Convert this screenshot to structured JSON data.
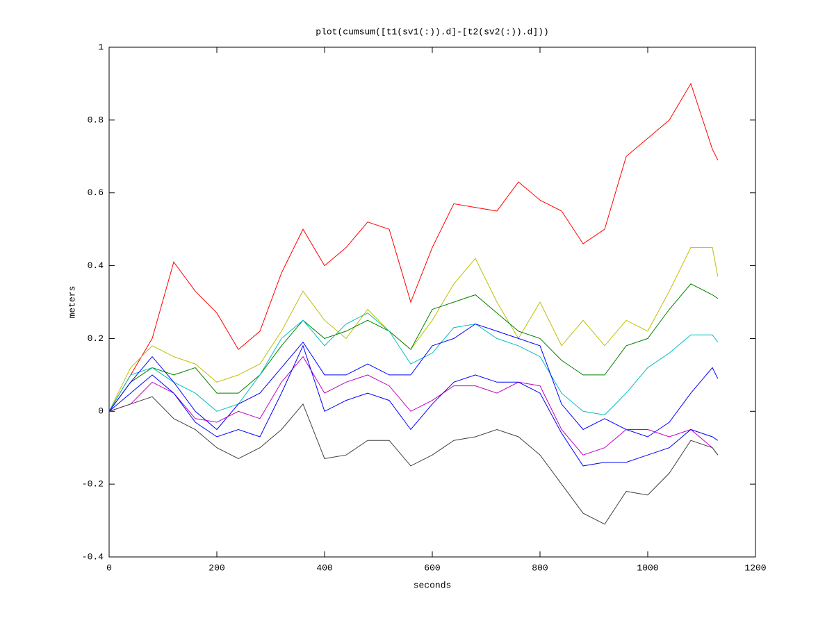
{
  "chart_data": {
    "type": "line",
    "title": "plot(cumsum([t1(sv1(:)).d]-[t2(sv2(:)).d]))",
    "xlabel": "seconds",
    "ylabel": "meters",
    "x": [
      0,
      40,
      80,
      120,
      160,
      200,
      240,
      280,
      320,
      360,
      400,
      440,
      480,
      520,
      560,
      600,
      640,
      680,
      720,
      760,
      800,
      840,
      880,
      920,
      960,
      1000,
      1040,
      1080,
      1120,
      1130
    ],
    "series": [
      {
        "color": "#ff0000",
        "values": [
          0,
          0.1,
          0.2,
          0.41,
          0.33,
          0.27,
          0.17,
          0.22,
          0.38,
          0.5,
          0.4,
          0.45,
          0.52,
          0.5,
          0.3,
          0.45,
          0.57,
          0.56,
          0.55,
          0.63,
          0.58,
          0.55,
          0.46,
          0.5,
          0.7,
          0.75,
          0.8,
          0.9,
          0.72,
          0.69
        ]
      },
      {
        "color": "#bfbf00",
        "values": [
          0,
          0.12,
          0.18,
          0.15,
          0.13,
          0.08,
          0.1,
          0.13,
          0.22,
          0.33,
          0.25,
          0.2,
          0.28,
          0.22,
          0.17,
          0.25,
          0.35,
          0.42,
          0.3,
          0.2,
          0.3,
          0.18,
          0.25,
          0.18,
          0.25,
          0.22,
          0.33,
          0.45,
          0.45,
          0.37
        ]
      },
      {
        "color": "#008000",
        "values": [
          0,
          0.08,
          0.12,
          0.1,
          0.12,
          0.05,
          0.05,
          0.1,
          0.18,
          0.25,
          0.2,
          0.22,
          0.25,
          0.22,
          0.17,
          0.28,
          0.3,
          0.32,
          0.27,
          0.22,
          0.2,
          0.14,
          0.1,
          0.1,
          0.18,
          0.2,
          0.28,
          0.35,
          0.32,
          0.31
        ]
      },
      {
        "color": "#00bfbf",
        "values": [
          0,
          0.1,
          0.12,
          0.08,
          0.05,
          0,
          0.02,
          0.1,
          0.2,
          0.25,
          0.18,
          0.24,
          0.27,
          0.22,
          0.13,
          0.16,
          0.23,
          0.24,
          0.2,
          0.18,
          0.15,
          0.05,
          0,
          -0.01,
          0.05,
          0.12,
          0.16,
          0.21,
          0.21,
          0.19
        ]
      },
      {
        "color": "#0000ff",
        "values": [
          0,
          0.08,
          0.15,
          0.08,
          0,
          -0.05,
          0.02,
          0.05,
          0.12,
          0.19,
          0.1,
          0.1,
          0.13,
          0.1,
          0.1,
          0.18,
          0.2,
          0.24,
          0.22,
          0.2,
          0.18,
          0.02,
          -0.05,
          -0.02,
          -0.05,
          -0.07,
          -0.03,
          0.05,
          0.12,
          0.09
        ]
      },
      {
        "color": "#bf00bf",
        "values": [
          0,
          0.02,
          0.08,
          0.05,
          -0.02,
          -0.03,
          0,
          -0.02,
          0.08,
          0.15,
          0.05,
          0.08,
          0.1,
          0.07,
          0,
          0.03,
          0.07,
          0.07,
          0.05,
          0.08,
          0.07,
          -0.05,
          -0.12,
          -0.1,
          -0.05,
          -0.05,
          -0.07,
          -0.05,
          -0.1,
          -0.12
        ]
      },
      {
        "color": "#0000ff",
        "values": [
          0,
          0.05,
          0.1,
          0.05,
          -0.03,
          -0.07,
          -0.05,
          -0.07,
          0.05,
          0.18,
          0,
          0.03,
          0.05,
          0.03,
          -0.05,
          0.02,
          0.08,
          0.1,
          0.08,
          0.08,
          0.05,
          -0.06,
          -0.15,
          -0.14,
          -0.14,
          -0.12,
          -0.1,
          -0.05,
          -0.07,
          -0.08
        ]
      },
      {
        "color": "#404040",
        "values": [
          0,
          0.02,
          0.04,
          -0.02,
          -0.05,
          -0.1,
          -0.13,
          -0.1,
          -0.05,
          0.02,
          -0.13,
          -0.12,
          -0.08,
          -0.08,
          -0.15,
          -0.12,
          -0.08,
          -0.07,
          -0.05,
          -0.07,
          -0.12,
          -0.2,
          -0.28,
          -0.31,
          -0.22,
          -0.23,
          -0.17,
          -0.08,
          -0.1,
          -0.12
        ]
      }
    ],
    "xlim": [
      0,
      1200
    ],
    "xticks": [
      0,
      200,
      400,
      600,
      800,
      1000,
      1200
    ],
    "ylim": [
      -0.4,
      1
    ],
    "yticks": [
      -0.4,
      -0.2,
      0,
      0.2,
      0.4,
      0.6,
      0.8,
      1
    ]
  }
}
